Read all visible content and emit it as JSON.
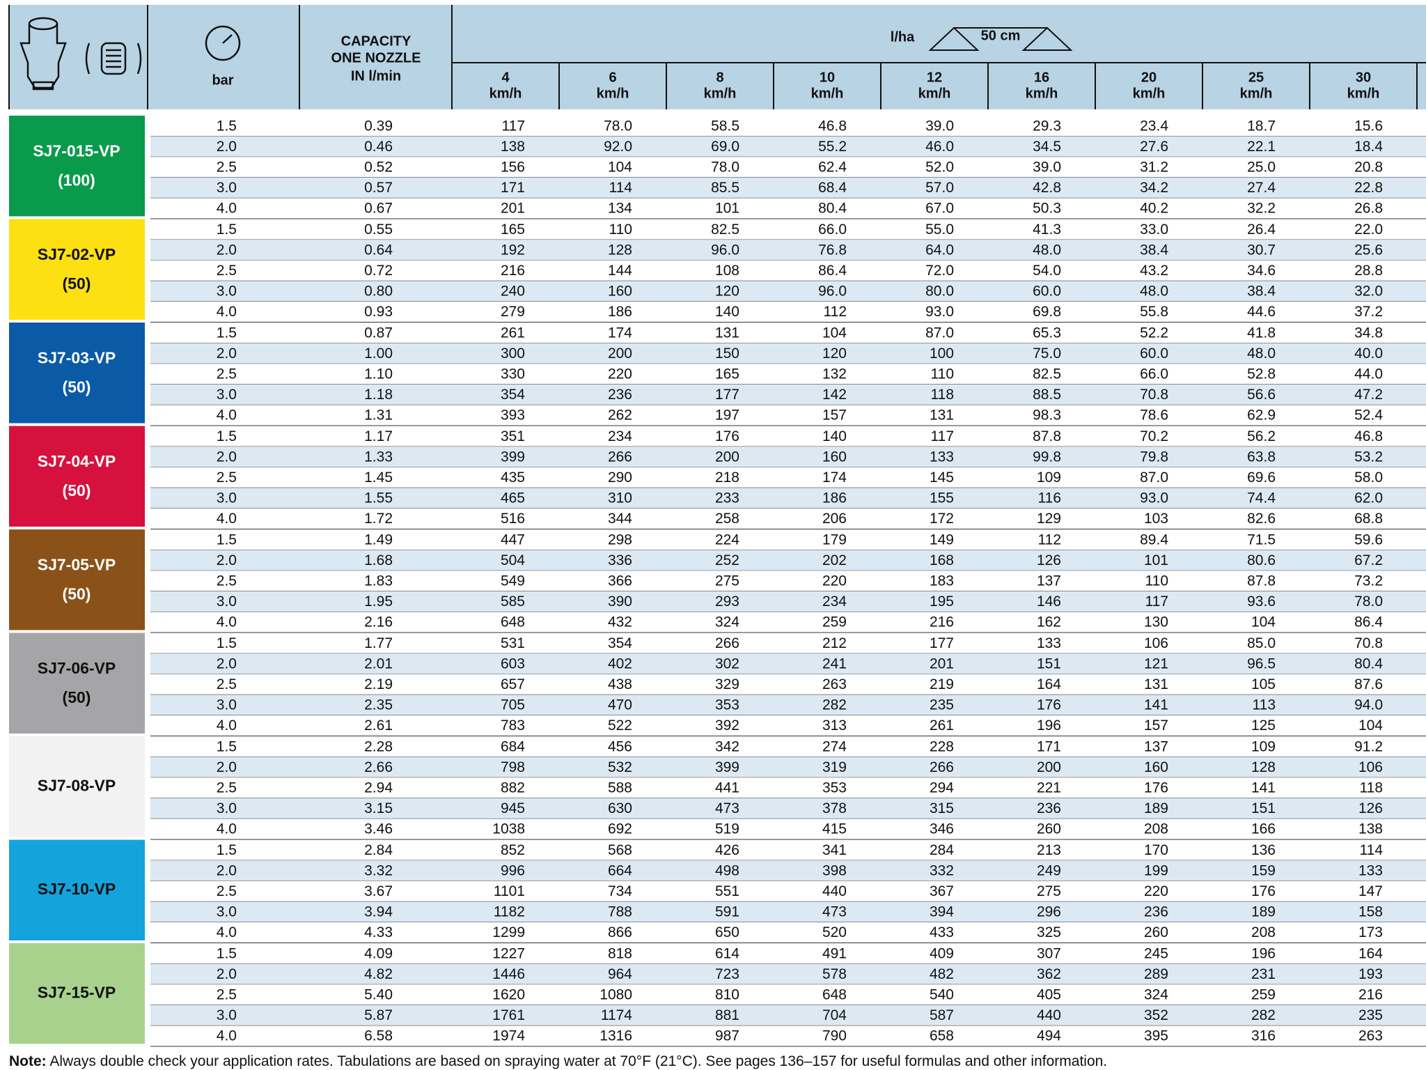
{
  "header": {
    "bar_label": "bar",
    "capacity_label": [
      "CAPACITY",
      "ONE NOZZLE",
      "IN l/min"
    ],
    "rate_label": "l/ha",
    "spacing_label": "50 cm",
    "speeds": [
      {
        "value": "4",
        "unit": "km/h"
      },
      {
        "value": "6",
        "unit": "km/h"
      },
      {
        "value": "8",
        "unit": "km/h"
      },
      {
        "value": "10",
        "unit": "km/h"
      },
      {
        "value": "12",
        "unit": "km/h"
      },
      {
        "value": "16",
        "unit": "km/h"
      },
      {
        "value": "20",
        "unit": "km/h"
      },
      {
        "value": "25",
        "unit": "km/h"
      },
      {
        "value": "30",
        "unit": "km/h"
      }
    ]
  },
  "groups": [
    {
      "name": "SJ7-015-VP",
      "code": "(100)",
      "color": "#0a9a4c",
      "text_color": "#ffffff",
      "rows": [
        [
          "1.5",
          "0.39",
          "117",
          "78.0",
          "58.5",
          "46.8",
          "39.0",
          "29.3",
          "23.4",
          "18.7",
          "15.6"
        ],
        [
          "2.0",
          "0.46",
          "138",
          "92.0",
          "69.0",
          "55.2",
          "46.0",
          "34.5",
          "27.6",
          "22.1",
          "18.4"
        ],
        [
          "2.5",
          "0.52",
          "156",
          "104",
          "78.0",
          "62.4",
          "52.0",
          "39.0",
          "31.2",
          "25.0",
          "20.8"
        ],
        [
          "3.0",
          "0.57",
          "171",
          "114",
          "85.5",
          "68.4",
          "57.0",
          "42.8",
          "34.2",
          "27.4",
          "22.8"
        ],
        [
          "4.0",
          "0.67",
          "201",
          "134",
          "101",
          "80.4",
          "67.0",
          "50.3",
          "40.2",
          "32.2",
          "26.8"
        ]
      ]
    },
    {
      "name": "SJ7-02-VP",
      "code": "(50)",
      "color": "#fde012",
      "text_color": "#111111",
      "rows": [
        [
          "1.5",
          "0.55",
          "165",
          "110",
          "82.5",
          "66.0",
          "55.0",
          "41.3",
          "33.0",
          "26.4",
          "22.0"
        ],
        [
          "2.0",
          "0.64",
          "192",
          "128",
          "96.0",
          "76.8",
          "64.0",
          "48.0",
          "38.4",
          "30.7",
          "25.6"
        ],
        [
          "2.5",
          "0.72",
          "216",
          "144",
          "108",
          "86.4",
          "72.0",
          "54.0",
          "43.2",
          "34.6",
          "28.8"
        ],
        [
          "3.0",
          "0.80",
          "240",
          "160",
          "120",
          "96.0",
          "80.0",
          "60.0",
          "48.0",
          "38.4",
          "32.0"
        ],
        [
          "4.0",
          "0.93",
          "279",
          "186",
          "140",
          "112",
          "93.0",
          "69.8",
          "55.8",
          "44.6",
          "37.2"
        ]
      ]
    },
    {
      "name": "SJ7-03-VP",
      "code": "(50)",
      "color": "#0b5aa6",
      "text_color": "#ffffff",
      "rows": [
        [
          "1.5",
          "0.87",
          "261",
          "174",
          "131",
          "104",
          "87.0",
          "65.3",
          "52.2",
          "41.8",
          "34.8"
        ],
        [
          "2.0",
          "1.00",
          "300",
          "200",
          "150",
          "120",
          "100",
          "75.0",
          "60.0",
          "48.0",
          "40.0"
        ],
        [
          "2.5",
          "1.10",
          "330",
          "220",
          "165",
          "132",
          "110",
          "82.5",
          "66.0",
          "52.8",
          "44.0"
        ],
        [
          "3.0",
          "1.18",
          "354",
          "236",
          "177",
          "142",
          "118",
          "88.5",
          "70.8",
          "56.6",
          "47.2"
        ],
        [
          "4.0",
          "1.31",
          "393",
          "262",
          "197",
          "157",
          "131",
          "98.3",
          "78.6",
          "62.9",
          "52.4"
        ]
      ]
    },
    {
      "name": "SJ7-04-VP",
      "code": "(50)",
      "color": "#d6113d",
      "text_color": "#ffffff",
      "rows": [
        [
          "1.5",
          "1.17",
          "351",
          "234",
          "176",
          "140",
          "117",
          "87.8",
          "70.2",
          "56.2",
          "46.8"
        ],
        [
          "2.0",
          "1.33",
          "399",
          "266",
          "200",
          "160",
          "133",
          "99.8",
          "79.8",
          "63.8",
          "53.2"
        ],
        [
          "2.5",
          "1.45",
          "435",
          "290",
          "218",
          "174",
          "145",
          "109",
          "87.0",
          "69.6",
          "58.0"
        ],
        [
          "3.0",
          "1.55",
          "465",
          "310",
          "233",
          "186",
          "155",
          "116",
          "93.0",
          "74.4",
          "62.0"
        ],
        [
          "4.0",
          "1.72",
          "516",
          "344",
          "258",
          "206",
          "172",
          "129",
          "103",
          "82.6",
          "68.8"
        ]
      ]
    },
    {
      "name": "SJ7-05-VP",
      "code": "(50)",
      "color": "#8a5219",
      "text_color": "#ffffff",
      "rows": [
        [
          "1.5",
          "1.49",
          "447",
          "298",
          "224",
          "179",
          "149",
          "112",
          "89.4",
          "71.5",
          "59.6"
        ],
        [
          "2.0",
          "1.68",
          "504",
          "336",
          "252",
          "202",
          "168",
          "126",
          "101",
          "80.6",
          "67.2"
        ],
        [
          "2.5",
          "1.83",
          "549",
          "366",
          "275",
          "220",
          "183",
          "137",
          "110",
          "87.8",
          "73.2"
        ],
        [
          "3.0",
          "1.95",
          "585",
          "390",
          "293",
          "234",
          "195",
          "146",
          "117",
          "93.6",
          "78.0"
        ],
        [
          "4.0",
          "2.16",
          "648",
          "432",
          "324",
          "259",
          "216",
          "162",
          "130",
          "104",
          "86.4"
        ]
      ]
    },
    {
      "name": "SJ7-06-VP",
      "code": "(50)",
      "color": "#a5a5a7",
      "text_color": "#111111",
      "rows": [
        [
          "1.5",
          "1.77",
          "531",
          "354",
          "266",
          "212",
          "177",
          "133",
          "106",
          "85.0",
          "70.8"
        ],
        [
          "2.0",
          "2.01",
          "603",
          "402",
          "302",
          "241",
          "201",
          "151",
          "121",
          "96.5",
          "80.4"
        ],
        [
          "2.5",
          "2.19",
          "657",
          "438",
          "329",
          "263",
          "219",
          "164",
          "131",
          "105",
          "87.6"
        ],
        [
          "3.0",
          "2.35",
          "705",
          "470",
          "353",
          "282",
          "235",
          "176",
          "141",
          "113",
          "94.0"
        ],
        [
          "4.0",
          "2.61",
          "783",
          "522",
          "392",
          "313",
          "261",
          "196",
          "157",
          "125",
          "104"
        ]
      ]
    },
    {
      "name": "SJ7-08-VP",
      "color": "#f2f2f2",
      "text_color": "#111111",
      "rows": [
        [
          "1.5",
          "2.28",
          "684",
          "456",
          "342",
          "274",
          "228",
          "171",
          "137",
          "109",
          "91.2"
        ],
        [
          "2.0",
          "2.66",
          "798",
          "532",
          "399",
          "319",
          "266",
          "200",
          "160",
          "128",
          "106"
        ],
        [
          "2.5",
          "2.94",
          "882",
          "588",
          "441",
          "353",
          "294",
          "221",
          "176",
          "141",
          "118"
        ],
        [
          "3.0",
          "3.15",
          "945",
          "630",
          "473",
          "378",
          "315",
          "236",
          "189",
          "151",
          "126"
        ],
        [
          "4.0",
          "3.46",
          "1038",
          "692",
          "519",
          "415",
          "346",
          "260",
          "208",
          "166",
          "138"
        ]
      ]
    },
    {
      "name": "SJ7-10-VP",
      "color": "#15a3dc",
      "text_color": "#111111",
      "rows": [
        [
          "1.5",
          "2.84",
          "852",
          "568",
          "426",
          "341",
          "284",
          "213",
          "170",
          "136",
          "114"
        ],
        [
          "2.0",
          "3.32",
          "996",
          "664",
          "498",
          "398",
          "332",
          "249",
          "199",
          "159",
          "133"
        ],
        [
          "2.5",
          "3.67",
          "1101",
          "734",
          "551",
          "440",
          "367",
          "275",
          "220",
          "176",
          "147"
        ],
        [
          "3.0",
          "3.94",
          "1182",
          "788",
          "591",
          "473",
          "394",
          "296",
          "236",
          "189",
          "158"
        ],
        [
          "4.0",
          "4.33",
          "1299",
          "866",
          "650",
          "520",
          "433",
          "325",
          "260",
          "208",
          "173"
        ]
      ]
    },
    {
      "name": "SJ7-15-VP",
      "color": "#a9d18e",
      "text_color": "#111111",
      "rows": [
        [
          "1.5",
          "4.09",
          "1227",
          "818",
          "614",
          "491",
          "409",
          "307",
          "245",
          "196",
          "164"
        ],
        [
          "2.0",
          "4.82",
          "1446",
          "964",
          "723",
          "578",
          "482",
          "362",
          "289",
          "231",
          "193"
        ],
        [
          "2.5",
          "5.40",
          "1620",
          "1080",
          "810",
          "648",
          "540",
          "405",
          "324",
          "259",
          "216"
        ],
        [
          "3.0",
          "5.87",
          "1761",
          "1174",
          "881",
          "704",
          "587",
          "440",
          "352",
          "282",
          "235"
        ],
        [
          "4.0",
          "6.58",
          "1974",
          "1316",
          "987",
          "790",
          "658",
          "494",
          "395",
          "316",
          "263"
        ]
      ]
    }
  ],
  "note": {
    "label": "Note:",
    "text": " Always double check your application rates. Tabulations are based on spraying water at 70°F (21°C). See pages 136–157 for useful formulas and other information."
  }
}
